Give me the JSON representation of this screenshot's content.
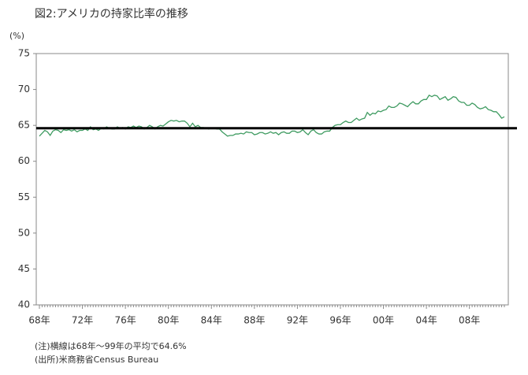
{
  "chart_data": {
    "type": "line",
    "title": "図2:アメリカの持家比率の推移",
    "y_unit": "(%)",
    "notes": [
      "(注)横線は68年～99年の平均で64.6%",
      "(出所)米商務省Census Bureau"
    ],
    "reference_line": {
      "value": 64.6,
      "color": "#000000"
    },
    "ylim": [
      40,
      75
    ],
    "yticks": [
      40,
      45,
      50,
      55,
      60,
      65,
      70,
      75
    ],
    "categories": [
      "68年",
      null,
      null,
      null,
      null,
      null,
      null,
      null,
      null,
      null,
      null,
      null,
      null,
      null,
      null,
      null,
      "72年",
      null,
      null,
      null,
      null,
      null,
      null,
      null,
      null,
      null,
      null,
      null,
      null,
      null,
      null,
      null,
      "76年",
      null,
      null,
      null,
      null,
      null,
      null,
      null,
      null,
      null,
      null,
      null,
      null,
      null,
      null,
      null,
      "80年",
      null,
      null,
      null,
      null,
      null,
      null,
      null,
      null,
      null,
      null,
      null,
      null,
      null,
      null,
      null,
      "84年",
      null,
      null,
      null,
      null,
      null,
      null,
      null,
      null,
      null,
      null,
      null,
      null,
      null,
      null,
      null,
      "88年",
      null,
      null,
      null,
      null,
      null,
      null,
      null,
      null,
      null,
      null,
      null,
      null,
      null,
      null,
      null,
      "92年",
      null,
      null,
      null,
      null,
      null,
      null,
      null,
      null,
      null,
      null,
      null,
      null,
      null,
      null,
      null,
      "96年",
      null,
      null,
      null,
      null,
      null,
      null,
      null,
      null,
      null,
      null,
      null,
      null,
      null,
      null,
      null,
      "00年",
      null,
      null,
      null,
      null,
      null,
      null,
      null,
      null,
      null,
      null,
      null,
      null,
      null,
      null,
      null,
      "04年",
      null,
      null,
      null,
      null,
      null,
      null,
      null,
      null,
      null,
      null,
      null,
      null,
      null,
      null,
      null,
      "08年",
      null,
      null,
      null,
      null,
      null,
      null,
      null,
      null,
      null,
      null,
      null,
      null,
      null
    ],
    "series": [
      {
        "color": "#3f9b61",
        "values": [
          63.5,
          63.9,
          64.3,
          64.1,
          63.6,
          64.2,
          64.4,
          64.3,
          64.0,
          64.4,
          64.3,
          64.4,
          64.2,
          64.4,
          64.1,
          64.3,
          64.3,
          64.5,
          64.3,
          64.8,
          64.4,
          64.5,
          64.3,
          64.6,
          64.5,
          64.8,
          64.6,
          64.5,
          64.5,
          64.8,
          64.6,
          64.7,
          64.5,
          64.8,
          64.7,
          64.9,
          64.7,
          64.9,
          64.8,
          64.5,
          64.7,
          65.0,
          64.8,
          64.5,
          64.8,
          65.0,
          64.9,
          65.2,
          65.5,
          65.7,
          65.6,
          65.7,
          65.5,
          65.6,
          65.6,
          65.3,
          64.8,
          65.3,
          64.8,
          65.0,
          64.7,
          64.7,
          64.6,
          64.5,
          64.6,
          64.6,
          64.5,
          64.5,
          64.1,
          63.8,
          63.5,
          63.6,
          63.6,
          63.8,
          63.8,
          63.9,
          63.8,
          64.1,
          64.0,
          64.0,
          63.7,
          63.8,
          64.0,
          64.0,
          63.8,
          63.9,
          64.1,
          63.9,
          64.0,
          63.7,
          64.0,
          64.1,
          63.9,
          63.9,
          64.2,
          64.2,
          64.0,
          64.1,
          64.4,
          64.0,
          63.7,
          64.2,
          64.4,
          64.0,
          63.8,
          63.8,
          64.1,
          64.2,
          64.2,
          64.7,
          65.0,
          65.1,
          65.1,
          65.4,
          65.6,
          65.4,
          65.4,
          65.7,
          66.0,
          65.7,
          65.9,
          66.0,
          66.8,
          66.4,
          66.7,
          66.6,
          67.0,
          66.9,
          67.1,
          67.2,
          67.7,
          67.5,
          67.5,
          67.7,
          68.1,
          68.0,
          67.8,
          67.6,
          68.0,
          68.3,
          68.0,
          68.0,
          68.4,
          68.6,
          68.6,
          69.2,
          69.0,
          69.2,
          69.1,
          68.6,
          68.8,
          69.0,
          68.5,
          68.7,
          69.0,
          68.9,
          68.4,
          68.2,
          68.2,
          67.8,
          67.8,
          68.1,
          67.9,
          67.5,
          67.3,
          67.4,
          67.6,
          67.2,
          67.1,
          66.9,
          66.9,
          66.5,
          66.0,
          66.2
        ]
      }
    ]
  }
}
